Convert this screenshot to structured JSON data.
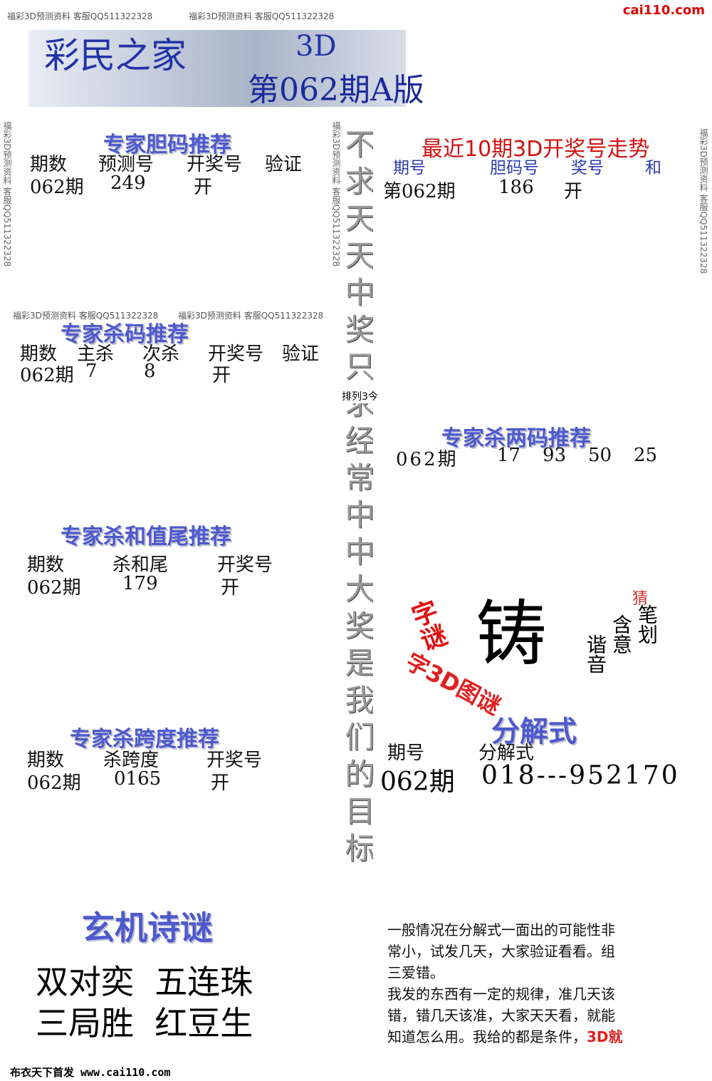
{
  "site": "cai110.com",
  "watermark": "福彩3D预测资料 客服QQ511322328",
  "header": {
    "brand": "彩民之家",
    "game": "3D",
    "issue": "第062期A版"
  },
  "dan": {
    "title": "专家胆码推荐",
    "headers": [
      "期数",
      "预测号",
      "开奖号",
      "验证"
    ],
    "row": [
      "062期",
      "249",
      "开"
    ]
  },
  "trend": {
    "title": "最近10期3D开奖号走势",
    "headers": [
      "期号",
      "胆码号",
      "奖号",
      "和"
    ],
    "row": [
      "第062期",
      "186",
      "开"
    ]
  },
  "kill": {
    "title": "专家杀码推荐",
    "headers": [
      "期数",
      "主杀",
      "次杀",
      "开奖号",
      "验证"
    ],
    "row": [
      "062期",
      "7",
      "8",
      "开"
    ]
  },
  "pl3": "排列3今",
  "kill2": {
    "title": "专家杀两码推荐",
    "issue": "062期",
    "pairs": [
      "17",
      "93",
      "50",
      "25"
    ]
  },
  "sumtail": {
    "title": "专家杀和值尾推荐",
    "headers": [
      "期数",
      "杀和尾",
      "开奖号"
    ],
    "row": [
      "062期",
      "179",
      "开"
    ]
  },
  "riddle": {
    "char": "铸",
    "label": "字谜",
    "guess": "猜",
    "hints": [
      "笔划",
      "含意",
      "谐音"
    ],
    "banner": "字3D图谜"
  },
  "span": {
    "title": "专家杀跨度推荐",
    "headers": [
      "期数",
      "杀跨度",
      "开奖号"
    ],
    "row": [
      "062期",
      "0165",
      "开"
    ]
  },
  "decomp": {
    "title": "分解式",
    "headers": [
      "期号",
      "分解式"
    ],
    "row": [
      "062期",
      "018---952170"
    ]
  },
  "poem": {
    "title": "玄机诗谜",
    "lines": [
      "双对奕  五连珠",
      "三局胜  红豆生"
    ]
  },
  "slogan": "不求天天中奖只求经常中中大奖是我们的目标",
  "note": {
    "lines": [
      "一般情况在分解式一面出的可能性非",
      "常小，试发几天，大家验证看看。组",
      "三爱错。",
      "我发的东西有一定的规律，准几天该",
      "错，错几天该准，大家天天看，就能",
      "知道怎么用。我给的都是条件，"
    ],
    "highlight": "3D就"
  },
  "footer": "布衣天下首发 www.cai110.com"
}
